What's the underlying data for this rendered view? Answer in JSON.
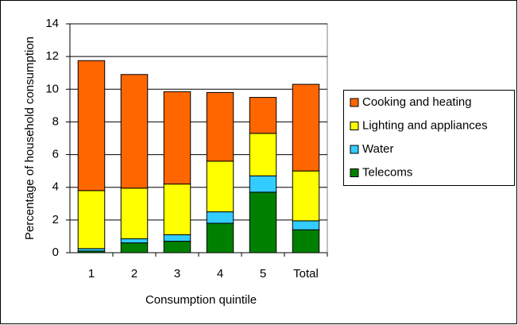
{
  "chart_data": {
    "type": "stacked-bar",
    "x_label": "Consumption quintile",
    "y_label": "Percentage of household consumption",
    "categories": [
      "1",
      "2",
      "3",
      "4",
      "5",
      "Total"
    ],
    "series": [
      {
        "name": "Telecoms",
        "color": "#008000",
        "values": [
          0.1,
          0.6,
          0.7,
          1.8,
          3.7,
          1.4
        ]
      },
      {
        "name": "Water",
        "color": "#33ccff",
        "values": [
          0.15,
          0.25,
          0.4,
          0.7,
          1.0,
          0.55
        ]
      },
      {
        "name": "Lighting and appliances",
        "color": "#ffff00",
        "values": [
          3.55,
          3.1,
          3.1,
          3.1,
          2.6,
          3.05
        ]
      },
      {
        "name": "Cooking and heating",
        "color": "#ff6600",
        "values": [
          7.95,
          6.95,
          5.65,
          4.2,
          2.2,
          5.3
        ]
      }
    ],
    "ylim": [
      0,
      14
    ],
    "yticks": [
      0,
      2,
      4,
      6,
      8,
      10,
      12,
      14
    ],
    "grid": true,
    "legend": "right"
  }
}
